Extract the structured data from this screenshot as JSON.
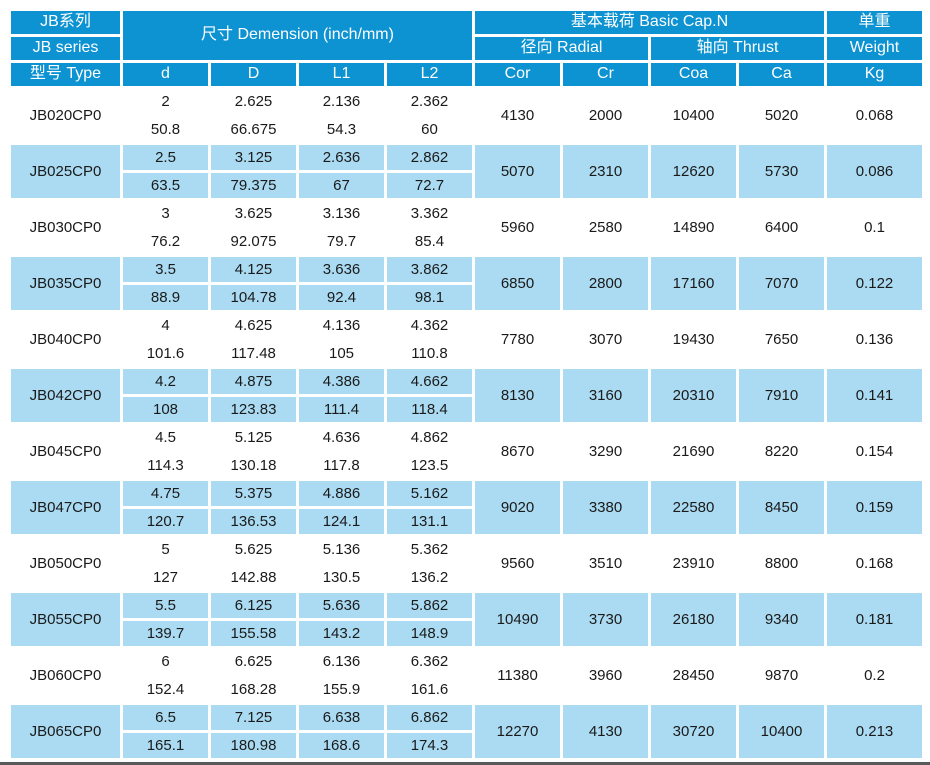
{
  "header": {
    "series_cn": "JB系列",
    "series_en": "JB series",
    "type_label": "型号 Type",
    "dimension_label": "尺寸 Demension  (inch/mm)",
    "basic_cap_label": "基本载荷 Basic Cap.N",
    "radial_label": "径向 Radial",
    "thrust_label": "轴向 Thrust",
    "weight_cn": "单重",
    "weight_en": "Weight",
    "weight_unit": "Kg",
    "dim_cols": [
      "d",
      "D",
      "L1",
      "L2"
    ],
    "load_cols": [
      "Cor",
      "Cr",
      "Coa",
      "Ca"
    ]
  },
  "rows": [
    {
      "type": "JB020CP0",
      "d_in": "2",
      "d_mm": "50.8",
      "D_in": "2.625",
      "D_mm": "66.675",
      "L1_in": "2.136",
      "L1_mm": "54.3",
      "L2_in": "2.362",
      "L2_mm": "60",
      "cor": "4130",
      "cr": "2000",
      "coa": "10400",
      "ca": "5020",
      "kg": "0.068"
    },
    {
      "type": "JB025CP0",
      "d_in": "2.5",
      "d_mm": "63.5",
      "D_in": "3.125",
      "D_mm": "79.375",
      "L1_in": "2.636",
      "L1_mm": "67",
      "L2_in": "2.862",
      "L2_mm": "72.7",
      "cor": "5070",
      "cr": "2310",
      "coa": "12620",
      "ca": "5730",
      "kg": "0.086"
    },
    {
      "type": "JB030CP0",
      "d_in": "3",
      "d_mm": "76.2",
      "D_in": "3.625",
      "D_mm": "92.075",
      "L1_in": "3.136",
      "L1_mm": "79.7",
      "L2_in": "3.362",
      "L2_mm": "85.4",
      "cor": "5960",
      "cr": "2580",
      "coa": "14890",
      "ca": "6400",
      "kg": "0.1"
    },
    {
      "type": "JB035CP0",
      "d_in": "3.5",
      "d_mm": "88.9",
      "D_in": "4.125",
      "D_mm": "104.78",
      "L1_in": "3.636",
      "L1_mm": "92.4",
      "L2_in": "3.862",
      "L2_mm": "98.1",
      "cor": "6850",
      "cr": "2800",
      "coa": "17160",
      "ca": "7070",
      "kg": "0.122"
    },
    {
      "type": "JB040CP0",
      "d_in": "4",
      "d_mm": "101.6",
      "D_in": "4.625",
      "D_mm": "117.48",
      "L1_in": "4.136",
      "L1_mm": "105",
      "L2_in": "4.362",
      "L2_mm": "110.8",
      "cor": "7780",
      "cr": "3070",
      "coa": "19430",
      "ca": "7650",
      "kg": "0.136"
    },
    {
      "type": "JB042CP0",
      "d_in": "4.2",
      "d_mm": "108",
      "D_in": "4.875",
      "D_mm": "123.83",
      "L1_in": "4.386",
      "L1_mm": "111.4",
      "L2_in": "4.662",
      "L2_mm": "118.4",
      "cor": "8130",
      "cr": "3160",
      "coa": "20310",
      "ca": "7910",
      "kg": "0.141"
    },
    {
      "type": "JB045CP0",
      "d_in": "4.5",
      "d_mm": "114.3",
      "D_in": "5.125",
      "D_mm": "130.18",
      "L1_in": "4.636",
      "L1_mm": "117.8",
      "L2_in": "4.862",
      "L2_mm": "123.5",
      "cor": "8670",
      "cr": "3290",
      "coa": "21690",
      "ca": "8220",
      "kg": "0.154"
    },
    {
      "type": "JB047CP0",
      "d_in": "4.75",
      "d_mm": "120.7",
      "D_in": "5.375",
      "D_mm": "136.53",
      "L1_in": "4.886",
      "L1_mm": "124.1",
      "L2_in": "5.162",
      "L2_mm": "131.1",
      "cor": "9020",
      "cr": "3380",
      "coa": "22580",
      "ca": "8450",
      "kg": "0.159"
    },
    {
      "type": "JB050CP0",
      "d_in": "5",
      "d_mm": "127",
      "D_in": "5.625",
      "D_mm": "142.88",
      "L1_in": "5.136",
      "L1_mm": "130.5",
      "L2_in": "5.362",
      "L2_mm": "136.2",
      "cor": "9560",
      "cr": "3510",
      "coa": "23910",
      "ca": "8800",
      "kg": "0.168"
    },
    {
      "type": "JB055CP0",
      "d_in": "5.5",
      "d_mm": "139.7",
      "D_in": "6.125",
      "D_mm": "155.58",
      "L1_in": "5.636",
      "L1_mm": "143.2",
      "L2_in": "5.862",
      "L2_mm": "148.9",
      "cor": "10490",
      "cr": "3730",
      "coa": "26180",
      "ca": "9340",
      "kg": "0.181"
    },
    {
      "type": "JB060CP0",
      "d_in": "6",
      "d_mm": "152.4",
      "D_in": "6.625",
      "D_mm": "168.28",
      "L1_in": "6.136",
      "L1_mm": "155.9",
      "L2_in": "6.362",
      "L2_mm": "161.6",
      "cor": "11380",
      "cr": "3960",
      "coa": "28450",
      "ca": "9870",
      "kg": "0.2"
    },
    {
      "type": "JB065CP0",
      "d_in": "6.5",
      "d_mm": "165.1",
      "D_in": "7.125",
      "D_mm": "180.98",
      "L1_in": "6.638",
      "L1_mm": "168.6",
      "L2_in": "6.862",
      "L2_mm": "174.3",
      "cor": "12270",
      "cr": "4130",
      "coa": "30720",
      "ca": "10400",
      "kg": "0.213"
    }
  ],
  "colors": {
    "header_blue": "#0d92d2",
    "row_blue": "#aadbf2",
    "border_white": "#ffffff",
    "text_dark": "#1a1a1a",
    "rule_gray": "#59595b",
    "page_bg": "#ffffff"
  }
}
